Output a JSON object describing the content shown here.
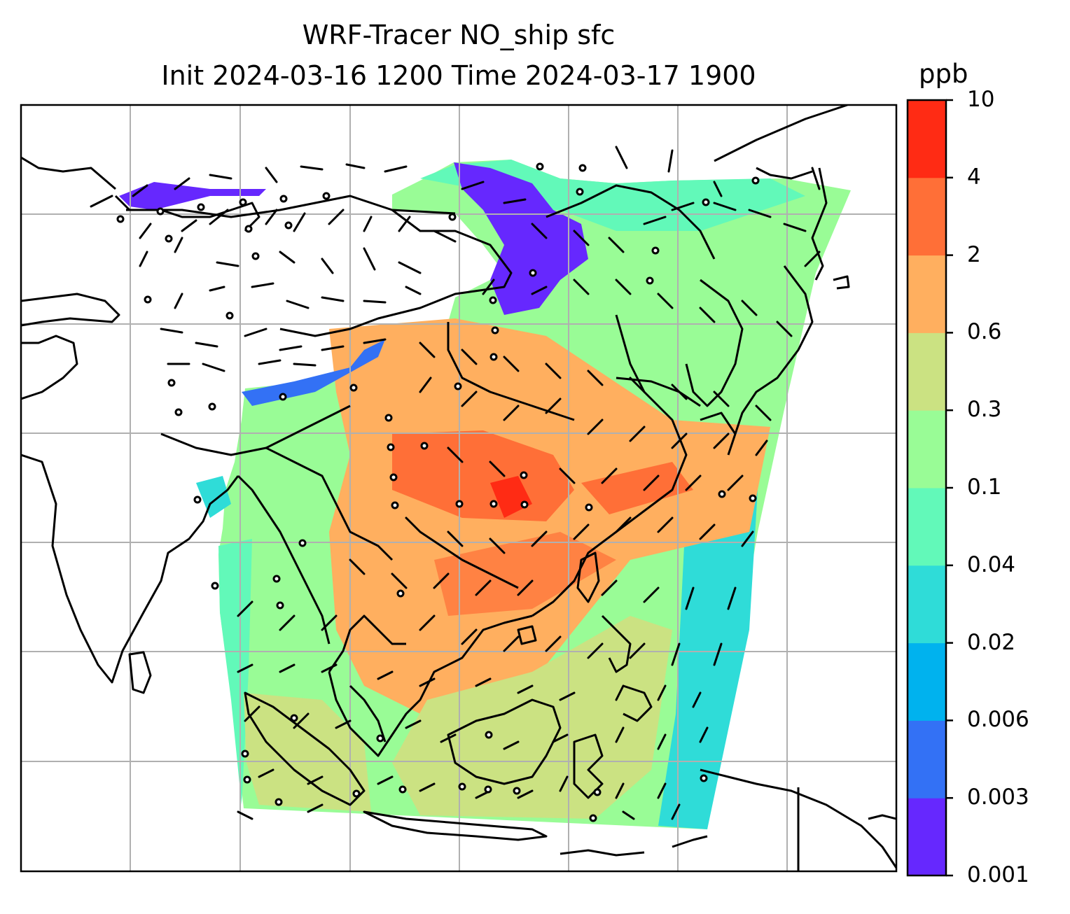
{
  "title": {
    "line1": "WRF-Tracer NO_ship sfc",
    "line2": "Init 2024-03-16 1200 Time 2024-03-17 1900"
  },
  "colorbar": {
    "unit": "ppb",
    "ticks": [
      "0.001",
      "0.003",
      "0.006",
      "0.02",
      "0.04",
      "0.1",
      "0.3",
      "0.6",
      "2",
      "4",
      "10"
    ],
    "colors": [
      "#6628fe",
      "#3371f5",
      "#00b2ee",
      "#2fdcd8",
      "#62f9b9",
      "#99fc96",
      "#cbe282",
      "#ffaf5f",
      "#ff6f37",
      "#ff2b14"
    ]
  },
  "map": {
    "gridlines": true,
    "coastline_color": "#000000",
    "gridline_color": "#b0b0b0"
  }
}
